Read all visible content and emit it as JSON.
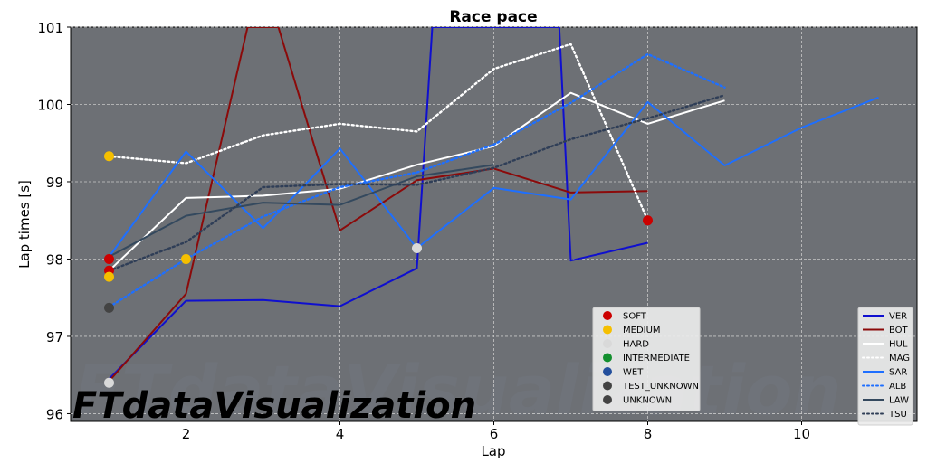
{
  "chart_data": {
    "type": "line",
    "title": "Race pace",
    "xlabel": "Lap",
    "ylabel": "Lap times [s]",
    "xlim": [
      0.5,
      11.5
    ],
    "ylim": [
      95.9,
      101
    ],
    "xticks": [
      "2",
      "4",
      "6",
      "8",
      "10"
    ],
    "xtick_values": [
      2,
      4,
      6,
      8,
      10
    ],
    "yticks": [
      "96",
      "97",
      "98",
      "99",
      "100",
      "101"
    ],
    "ytick_values": [
      96,
      97,
      98,
      99,
      100,
      101
    ],
    "grid": true,
    "plot_background": "#6d7075",
    "series": [
      {
        "name": "VER",
        "color": "#0f0fcf",
        "style": "solid",
        "x": [
          1,
          2,
          3,
          4,
          5,
          5.2,
          6.85,
          7,
          8
        ],
        "y": [
          96.45,
          97.46,
          97.47,
          97.39,
          97.88,
          101.0,
          101.0,
          97.98,
          98.21
        ]
      },
      {
        "name": "BOT",
        "color": "#8b0a0a",
        "style": "solid",
        "x": [
          1,
          2,
          2.8,
          3.2,
          4,
          5,
          6,
          7,
          8
        ],
        "y": [
          96.42,
          97.55,
          101.0,
          101.0,
          98.37,
          99.02,
          99.17,
          98.86,
          98.88
        ]
      },
      {
        "name": "HUL",
        "color": "#ffffff",
        "style": "solid",
        "x": [
          1,
          2,
          3,
          4,
          5,
          6,
          7,
          8,
          9
        ],
        "y": [
          97.85,
          98.79,
          98.82,
          98.91,
          99.22,
          99.46,
          100.15,
          99.75,
          100.05
        ]
      },
      {
        "name": "MAG",
        "color": "#ffffff",
        "style": "dotted",
        "x": [
          1,
          2,
          3,
          4,
          5,
          6,
          7,
          8
        ],
        "y": [
          99.33,
          99.24,
          99.6,
          99.75,
          99.65,
          100.46,
          100.78,
          98.5
        ]
      },
      {
        "name": "SAR",
        "color": "#1e6fff",
        "style": "solid",
        "x": [
          1,
          2,
          3,
          4,
          5,
          6,
          7,
          8,
          9,
          10,
          11
        ],
        "y": [
          98.03,
          99.39,
          98.4,
          99.43,
          98.14,
          98.92,
          98.77,
          100.03,
          99.21,
          99.7,
          100.09
        ]
      },
      {
        "name": "ALB",
        "color": "#1e6fff",
        "style": "dotted",
        "x": [
          1,
          2,
          3,
          4,
          5,
          6,
          7,
          8,
          9
        ],
        "y": [
          97.38,
          98.0,
          98.55,
          98.93,
          99.12,
          99.48,
          100.02,
          100.65,
          100.22
        ]
      },
      {
        "name": "LAW",
        "color": "#34495e",
        "style": "solid",
        "x": [
          1,
          2,
          3,
          4,
          5,
          6
        ],
        "y": [
          98.03,
          98.56,
          98.73,
          98.7,
          99.07,
          99.22
        ]
      },
      {
        "name": "TSU",
        "color": "#2f3e57",
        "style": "dotted",
        "x": [
          1,
          2,
          3,
          4,
          5,
          6,
          7,
          8,
          9
        ],
        "y": [
          97.85,
          98.22,
          98.93,
          98.97,
          98.96,
          99.18,
          99.55,
          99.82,
          100.12
        ]
      }
    ],
    "compound_markers": [
      {
        "x": 1,
        "y": 98.0,
        "compound": "SOFT"
      },
      {
        "x": 1,
        "y": 97.85,
        "compound": "SOFT"
      },
      {
        "x": 1,
        "y": 99.33,
        "compound": "MEDIUM"
      },
      {
        "x": 1,
        "y": 97.77,
        "compound": "MEDIUM"
      },
      {
        "x": 1,
        "y": 97.37,
        "compound": "UNKNOWN"
      },
      {
        "x": 1,
        "y": 96.4,
        "compound": "HARD"
      },
      {
        "x": 2,
        "y": 98.0,
        "compound": "MEDIUM"
      },
      {
        "x": 5,
        "y": 98.14,
        "compound": "HARD"
      },
      {
        "x": 8,
        "y": 98.5,
        "compound": "SOFT"
      }
    ],
    "compound_legend": [
      {
        "name": "SOFT",
        "color": "#cc0000"
      },
      {
        "name": "MEDIUM",
        "color": "#f5bf00"
      },
      {
        "name": "HARD",
        "color": "#d9d9d9"
      },
      {
        "name": "INTERMEDIATE",
        "color": "#138f2e"
      },
      {
        "name": "WET",
        "color": "#234f9c"
      },
      {
        "name": "TEST_UNKNOWN",
        "color": "#434343"
      },
      {
        "name": "UNKNOWN",
        "color": "#434343"
      }
    ],
    "compound_legend_position": "bottom-center",
    "driver_legend_position": "bottom-right"
  },
  "watermark": {
    "text": "FTdataVisualization",
    "faded_text": "FTdataVisualization"
  }
}
